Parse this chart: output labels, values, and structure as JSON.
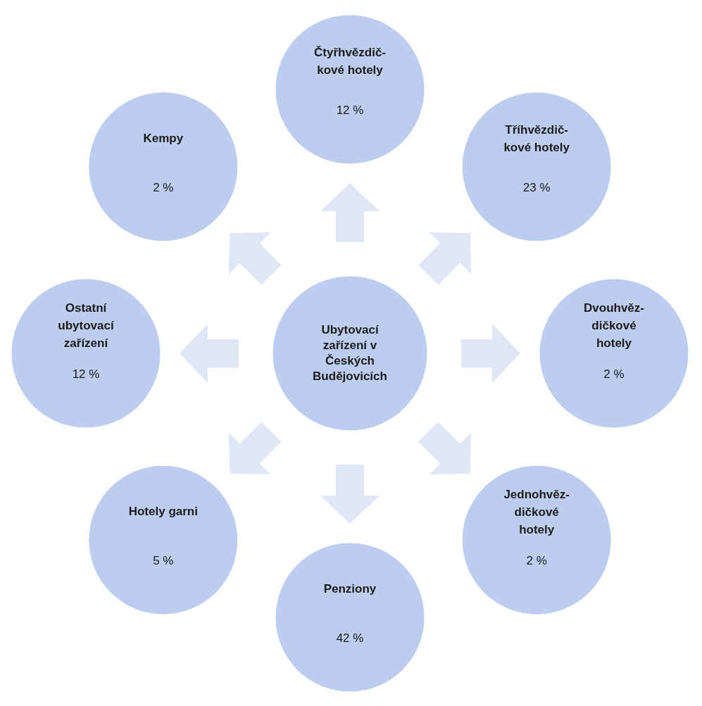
{
  "chart_data": {
    "type": "other",
    "title": "Ubytovací zařízení v Českých Budějovicích",
    "categories": [
      "Čtyřhvězdič-\nkové hotely",
      "Tříhvězdič-\nkové hotely",
      "Dvouhvěz-\ndičkové\nhotely",
      "Jednohvěz-\ndičkové\nhotely",
      "Penziony",
      "Hotely garni",
      "Ostatní\nubytovací\nzařízení",
      "Kempy"
    ],
    "values": [
      12,
      23,
      2,
      2,
      42,
      5,
      12,
      2
    ],
    "value_labels": [
      "12 %",
      "23 %",
      "2 %",
      "2 %",
      "42 %",
      "5 %",
      "12 %",
      "2 %"
    ],
    "color": "#bccdf0"
  }
}
